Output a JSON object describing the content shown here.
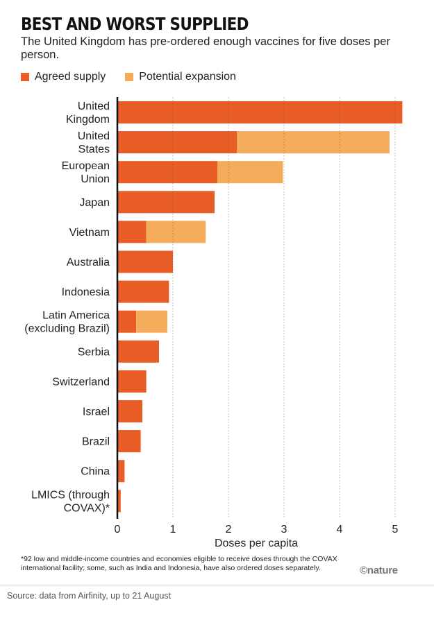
{
  "header": {
    "title": "BEST AND WORST SUPPLIED",
    "subtitle": "The United Kingdom has pre-ordered enough vaccines for five doses per person."
  },
  "legend": [
    {
      "label": "Agreed supply",
      "color": "#e85d25"
    },
    {
      "label": "Potential expansion",
      "color": "#f5ac5a"
    }
  ],
  "chart_data": {
    "type": "bar",
    "orientation": "horizontal",
    "stacked": true,
    "xlabel": "Doses per capita",
    "xlim": [
      0,
      5.2
    ],
    "xticks": [
      "0",
      "1",
      "2",
      "3",
      "4",
      "5"
    ],
    "categories": [
      [
        "United",
        "Kingdom"
      ],
      [
        "United",
        "States"
      ],
      [
        "European",
        "Union"
      ],
      [
        "Japan"
      ],
      [
        "Vietnam"
      ],
      [
        "Australia"
      ],
      [
        "Indonesia"
      ],
      [
        "Latin America",
        "(excluding Brazil)"
      ],
      [
        "Serbia"
      ],
      [
        "Switzerland"
      ],
      [
        "Israel"
      ],
      [
        "Brazil"
      ],
      [
        "China"
      ],
      [
        "LMICS (through",
        "COVAX)*"
      ]
    ],
    "series": [
      {
        "name": "Agreed supply",
        "color": "#e85d25",
        "values": [
          5.13,
          2.15,
          1.8,
          1.75,
          0.52,
          1.0,
          0.93,
          0.34,
          0.75,
          0.52,
          0.45,
          0.42,
          0.13,
          0.06
        ]
      },
      {
        "name": "Potential expansion",
        "color": "#f5ac5a",
        "values": [
          0,
          2.75,
          1.18,
          0,
          1.07,
          0,
          0,
          0.56,
          0,
          0,
          0,
          0,
          0,
          0
        ]
      }
    ]
  },
  "footnote": "*92 low and middle-income countries and economies eligible to receive doses through the COVAX international facility; some, such as India and Indonesia, have also ordered doses separately.",
  "logo": "©nature",
  "source": "Source: data from Airfinity, up to 21 August"
}
